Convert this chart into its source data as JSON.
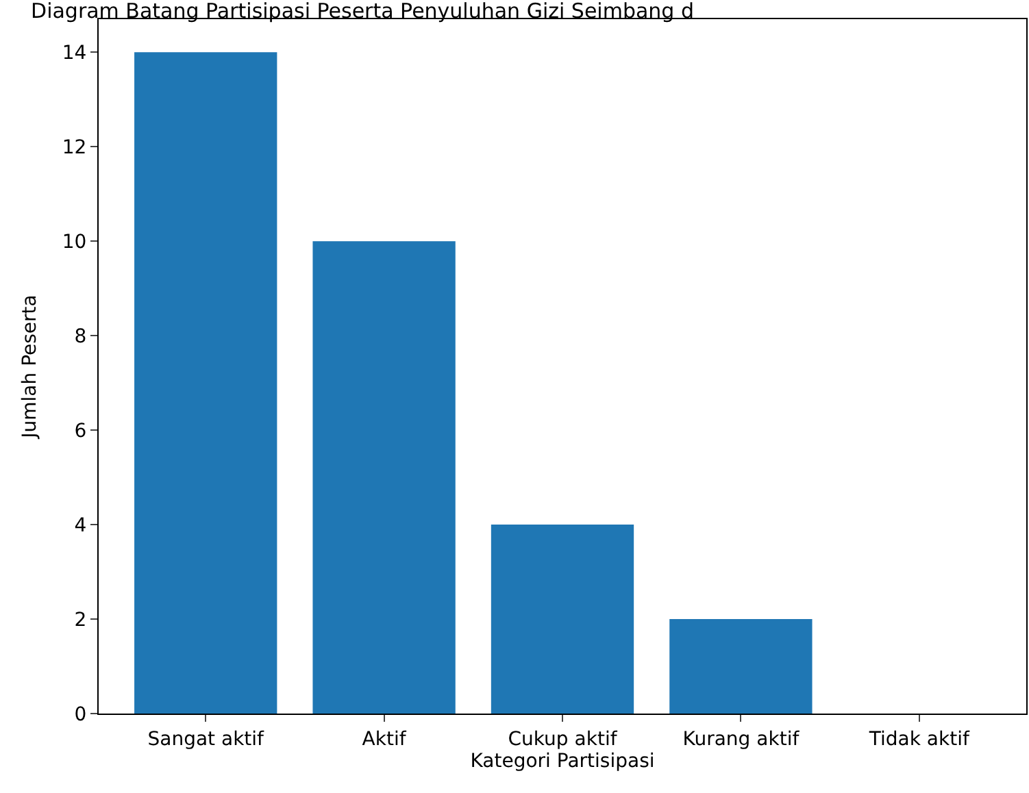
{
  "chart_data": {
    "type": "bar",
    "title": "Diagram Batang Partisipasi Peserta Penyuluhan Gizi Seimbang d",
    "xlabel": "Kategori Partisipasi",
    "ylabel": "Jumlah Peserta",
    "categories": [
      "Sangat aktif",
      "Aktif",
      "Cukup aktif",
      "Kurang aktif",
      "Tidak aktif"
    ],
    "values": [
      14,
      10,
      4,
      2,
      0
    ],
    "color": "#1f77b4",
    "ylim": [
      0,
      14.7
    ],
    "yticks": [
      0,
      2,
      4,
      6,
      8,
      10,
      12,
      14
    ]
  }
}
